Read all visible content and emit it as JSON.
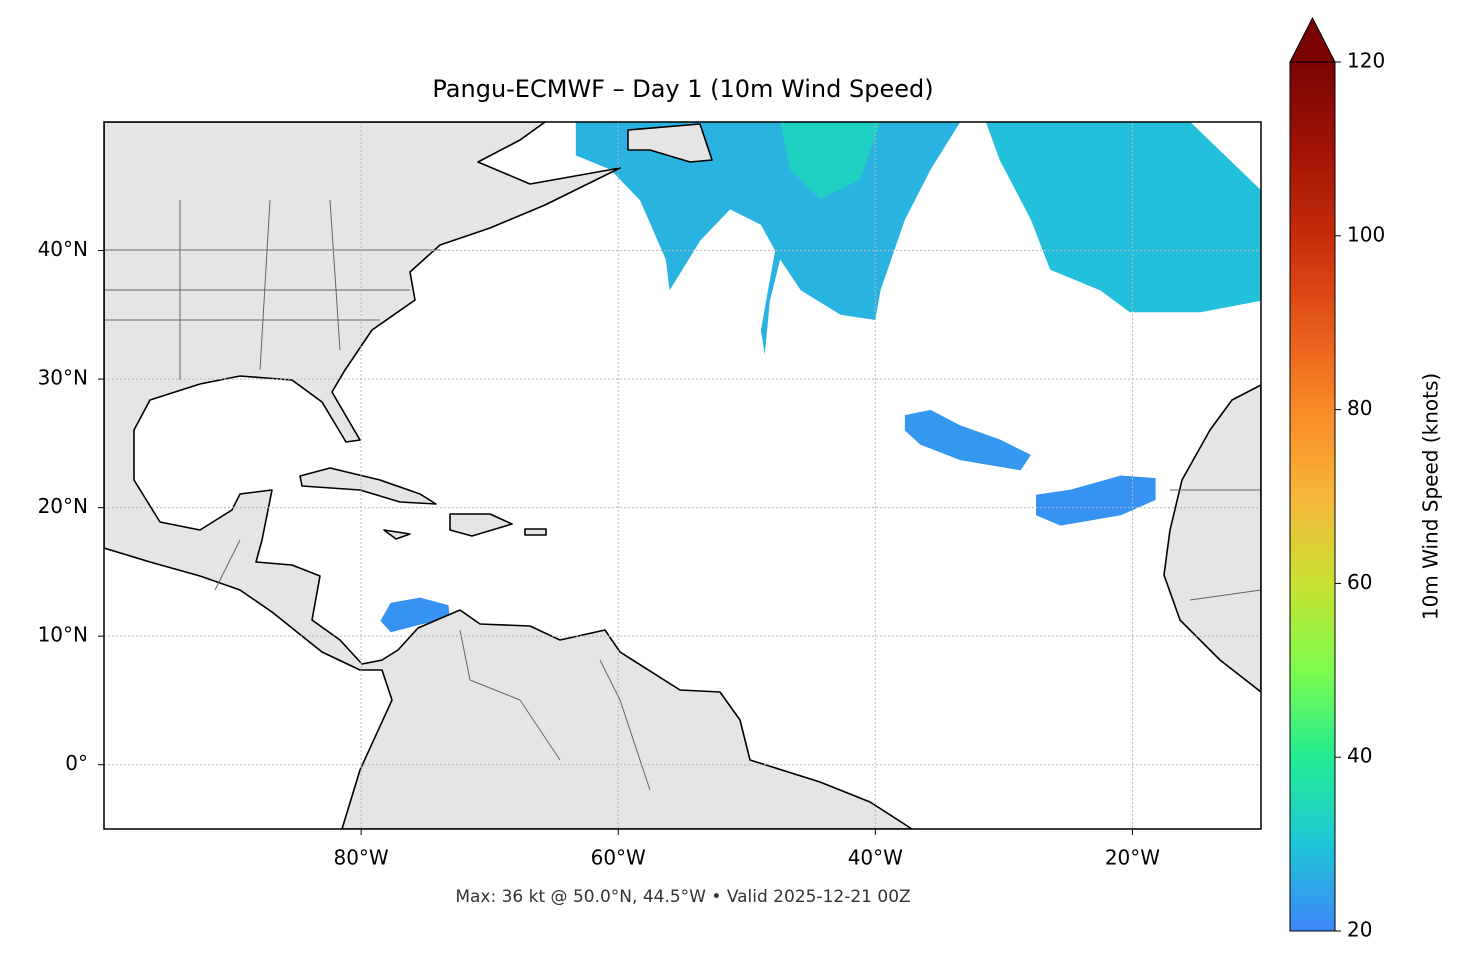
{
  "chart_data": {
    "type": "map",
    "title": "Pangu-ECMWF – Day 1 (10m Wind Speed)",
    "annotation": "Max: 36 kt @ 50.0°N, 44.5°W • Valid 2025-12-21 00Z",
    "xlim": [
      -100,
      -10
    ],
    "ylim": [
      -5,
      50
    ],
    "xticks": [
      {
        "value": -80,
        "label": "80°W"
      },
      {
        "value": -60,
        "label": "60°W"
      },
      {
        "value": -40,
        "label": "40°W"
      },
      {
        "value": -20,
        "label": "20°W"
      }
    ],
    "yticks": [
      {
        "value": 0,
        "label": "0°"
      },
      {
        "value": 10,
        "label": "10°N"
      },
      {
        "value": 20,
        "label": "20°N"
      },
      {
        "value": 30,
        "label": "30°N"
      },
      {
        "value": 40,
        "label": "40°N"
      }
    ],
    "grid": true,
    "colorbar": {
      "label": "10m Wind Speed (knots)",
      "lim": [
        20,
        120
      ],
      "ticks": [
        20,
        40,
        60,
        80,
        100,
        120
      ],
      "extend": "max"
    },
    "fields": [
      {
        "value": 27,
        "polygon": [
          [
            -63.3,
            50
          ],
          [
            -33.4,
            50
          ],
          [
            -35.7,
            46.3
          ],
          [
            -37.7,
            42.4
          ],
          [
            -39.6,
            36.9
          ],
          [
            -40.0,
            34.6
          ],
          [
            -42.7,
            35.0
          ],
          [
            -45.8,
            36.9
          ],
          [
            -47.4,
            39.3
          ],
          [
            -48.2,
            36.1
          ],
          [
            -48.6,
            31.9
          ],
          [
            -48.9,
            33.8
          ],
          [
            -47.8,
            40.0
          ],
          [
            -48.9,
            42.0
          ],
          [
            -51.3,
            43.2
          ],
          [
            -53.6,
            40.8
          ],
          [
            -56.0,
            36.9
          ],
          [
            -56.3,
            39.3
          ],
          [
            -58.3,
            43.9
          ],
          [
            -60.6,
            46.3
          ],
          [
            -63.3,
            47.4
          ]
        ]
      },
      {
        "value": 33,
        "polygon": [
          [
            -47.4,
            50
          ],
          [
            -39.6,
            50
          ],
          [
            -41.2,
            45.5
          ],
          [
            -44.3,
            44.0
          ],
          [
            -46.6,
            46.3
          ]
        ]
      },
      {
        "value": 29,
        "polygon": [
          [
            -31.4,
            50
          ],
          [
            -15.5,
            50
          ],
          [
            -10,
            44.7
          ],
          [
            -10,
            36.1
          ],
          [
            -14.7,
            35.2
          ],
          [
            -20.2,
            35.2
          ],
          [
            -22.5,
            36.9
          ],
          [
            -26.4,
            38.5
          ],
          [
            -27.9,
            42.4
          ],
          [
            -30.3,
            47.0
          ]
        ]
      },
      {
        "value": 23,
        "polygon": [
          [
            -37.7,
            27.2
          ],
          [
            -35.7,
            27.6
          ],
          [
            -33.4,
            26.4
          ],
          [
            -30.3,
            25.3
          ],
          [
            -27.9,
            24.1
          ],
          [
            -28.7,
            22.9
          ],
          [
            -33.4,
            23.7
          ],
          [
            -36.5,
            24.9
          ],
          [
            -37.7,
            26.0
          ]
        ]
      },
      {
        "value": 22,
        "polygon": [
          [
            -27.5,
            21.0
          ],
          [
            -24.8,
            21.4
          ],
          [
            -20.9,
            22.5
          ],
          [
            -18.2,
            22.3
          ],
          [
            -18.2,
            20.6
          ],
          [
            -20.9,
            19.4
          ],
          [
            -25.6,
            18.6
          ],
          [
            -27.5,
            19.4
          ]
        ]
      },
      {
        "value": 22,
        "polygon": [
          [
            -78.5,
            11.2
          ],
          [
            -77.7,
            12.6
          ],
          [
            -75.4,
            13.0
          ],
          [
            -73.2,
            12.4
          ],
          [
            -73.1,
            11.4
          ],
          [
            -75.4,
            10.9
          ],
          [
            -77.7,
            10.3
          ]
        ]
      }
    ]
  }
}
